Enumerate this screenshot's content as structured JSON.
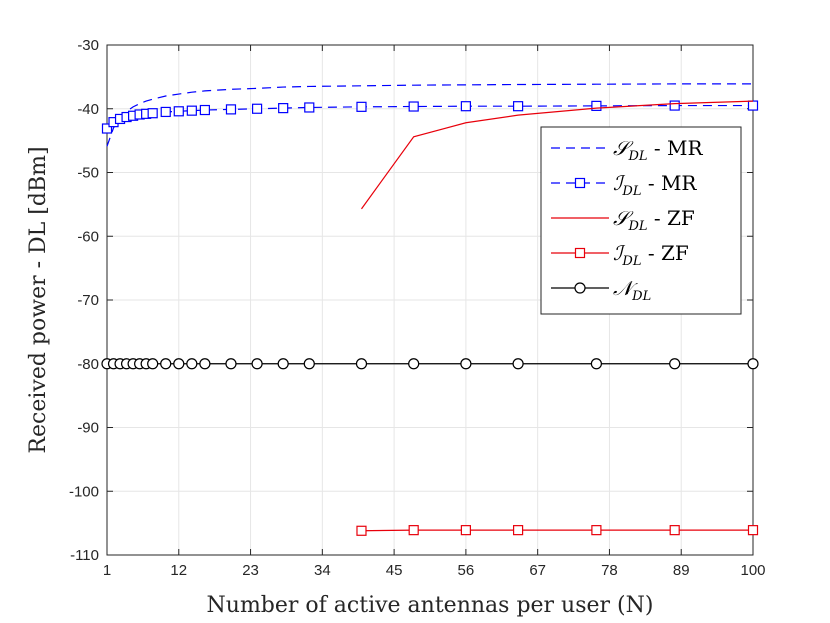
{
  "chart_data": {
    "type": "line",
    "xlabel": "Number of active antennas per user (N)",
    "ylabel": "Received power - DL [dBm]",
    "xlim": [
      1,
      100
    ],
    "ylim": [
      -110,
      -30
    ],
    "xticks": [
      1,
      12,
      23,
      34,
      45,
      56,
      67,
      78,
      89,
      100
    ],
    "yticks": [
      -110,
      -100,
      -90,
      -80,
      -70,
      -60,
      -50,
      -40,
      -30
    ],
    "grid": true,
    "legend_position": "right",
    "series": [
      {
        "name": "S_DL - MR",
        "legend_symbol": "𝒮",
        "legend_sub": "DL",
        "legend_suffix": " - MR",
        "color": "#0000ff",
        "line": "dashed",
        "marker": "none",
        "x": [
          1,
          2,
          3,
          4,
          5,
          6,
          7,
          8,
          10,
          12,
          14,
          16,
          20,
          24,
          28,
          32,
          40,
          48,
          56,
          64,
          76,
          88,
          100
        ],
        "y": [
          -45.9,
          -43.0,
          -41.4,
          -40.4,
          -39.7,
          -39.2,
          -38.8,
          -38.5,
          -38.0,
          -37.7,
          -37.4,
          -37.2,
          -36.95,
          -36.8,
          -36.6,
          -36.5,
          -36.4,
          -36.3,
          -36.25,
          -36.2,
          -36.15,
          -36.1,
          -36.1
        ]
      },
      {
        "name": "I_DL - MR",
        "legend_symbol": "ℐ",
        "legend_sub": "DL",
        "legend_suffix": " - MR",
        "color": "#0000ff",
        "line": "dashed",
        "marker": "square",
        "x": [
          1,
          2,
          3,
          4,
          5,
          6,
          7,
          8,
          10,
          12,
          14,
          16,
          20,
          24,
          28,
          32,
          40,
          48,
          56,
          64,
          76,
          88,
          100
        ],
        "y": [
          -43.1,
          -42.1,
          -41.6,
          -41.3,
          -41.1,
          -40.9,
          -40.8,
          -40.7,
          -40.5,
          -40.4,
          -40.3,
          -40.2,
          -40.1,
          -40.0,
          -39.9,
          -39.8,
          -39.7,
          -39.65,
          -39.6,
          -39.6,
          -39.55,
          -39.5,
          -39.5
        ]
      },
      {
        "name": "S_DL - ZF",
        "legend_symbol": "𝒮",
        "legend_sub": "DL",
        "legend_suffix": " - ZF",
        "color": "#e8000b",
        "line": "solid",
        "marker": "none",
        "x": [
          40,
          48,
          56,
          64,
          76,
          88,
          100
        ],
        "y": [
          -55.7,
          -44.4,
          -42.2,
          -41.0,
          -39.9,
          -39.2,
          -38.8
        ]
      },
      {
        "name": "I_DL - ZF",
        "legend_symbol": "ℐ",
        "legend_sub": "DL",
        "legend_suffix": " - ZF",
        "color": "#e8000b",
        "line": "solid",
        "marker": "square",
        "x": [
          40,
          48,
          56,
          64,
          76,
          88,
          100
        ],
        "y": [
          -106.2,
          -106.1,
          -106.1,
          -106.1,
          -106.1,
          -106.1,
          -106.1
        ]
      },
      {
        "name": "N_DL",
        "legend_symbol": "𝒩",
        "legend_sub": "DL",
        "legend_suffix": "",
        "color": "#000000",
        "line": "solid",
        "marker": "circle",
        "x": [
          1,
          2,
          3,
          4,
          5,
          6,
          7,
          8,
          10,
          12,
          14,
          16,
          20,
          24,
          28,
          32,
          40,
          48,
          56,
          64,
          76,
          88,
          100
        ],
        "y": [
          -80,
          -80,
          -80,
          -80,
          -80,
          -80,
          -80,
          -80,
          -80,
          -80,
          -80,
          -80,
          -80,
          -80,
          -80,
          -80,
          -80,
          -80,
          -80,
          -80,
          -80,
          -80,
          -80
        ]
      }
    ]
  }
}
